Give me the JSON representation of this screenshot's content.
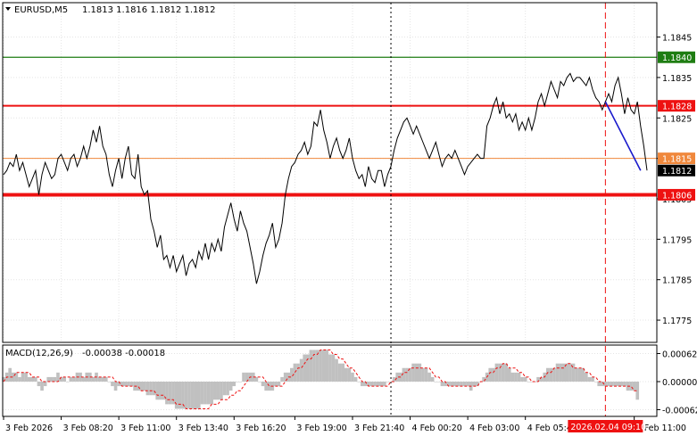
{
  "header": {
    "symbol": "EURUSD,M5",
    "ohlc": "1.1813 1.1816 1.1812 1.1812"
  },
  "macd_header": {
    "label": "MACD(12,26,9)",
    "values": "-0.00038 -0.00018"
  },
  "colors": {
    "price_line": "#000000",
    "resistance_green": "#1e7d12",
    "level_red": "#ee1111",
    "level_orange": "#f0883c",
    "trend_blue": "#1a1acc",
    "macd_hist": "#c0c0c0",
    "macd_signal": "#ee1111",
    "current_price_bg": "#000000"
  },
  "chart_data": {
    "type": "line",
    "title": "EURUSD,M5",
    "ylim": [
      1.17695,
      1.18535
    ],
    "y_ticks": [
      "1.1845",
      "1.1835",
      "1.1825",
      "1.1815",
      "1.1805",
      "1.1795",
      "1.1785",
      "1.1775"
    ],
    "x_ticks": [
      "3 Feb 2026",
      "3 Feb 08:20",
      "3 Feb 11:00",
      "3 Feb 13:40",
      "3 Feb 16:20",
      "3 Feb 19:00",
      "3 Feb 21:40",
      "4 Feb 00:20",
      "4 Feb 03:00",
      "4 Feb 05:40",
      "4 Feb 11:00"
    ],
    "cursor_time_label": "2026.02.04 09:10",
    "grid": true,
    "series": [
      {
        "values": [
          1.1811,
          1.1812,
          1.1814,
          1.1813,
          1.1816,
          1.1812,
          1.1814,
          1.1811,
          1.1808,
          1.181,
          1.1812,
          1.1806,
          1.1811,
          1.1814,
          1.1812,
          1.181,
          1.1811,
          1.1815,
          1.1816,
          1.1814,
          1.1812,
          1.1815,
          1.1816,
          1.1813,
          1.1815,
          1.1818,
          1.1815,
          1.1818,
          1.1822,
          1.1819,
          1.1823,
          1.1818,
          1.1816,
          1.1811,
          1.1808,
          1.1812,
          1.1815,
          1.181,
          1.1815,
          1.1818,
          1.1811,
          1.181,
          1.1816,
          1.1808,
          1.1806,
          1.1807,
          1.18,
          1.1797,
          1.1793,
          1.1796,
          1.179,
          1.1791,
          1.1788,
          1.1791,
          1.1787,
          1.1789,
          1.1791,
          1.1786,
          1.1789,
          1.179,
          1.1788,
          1.1792,
          1.179,
          1.1794,
          1.179,
          1.1794,
          1.1792,
          1.1795,
          1.1792,
          1.1798,
          1.1801,
          1.1804,
          1.18,
          1.1797,
          1.1802,
          1.1799,
          1.1797,
          1.1793,
          1.1789,
          1.1784,
          1.1787,
          1.1791,
          1.1794,
          1.1796,
          1.1799,
          1.1793,
          1.1795,
          1.1799,
          1.1806,
          1.181,
          1.1813,
          1.1814,
          1.1816,
          1.1817,
          1.1819,
          1.1816,
          1.1818,
          1.1824,
          1.1823,
          1.1827,
          1.1822,
          1.1819,
          1.1815,
          1.1818,
          1.182,
          1.1817,
          1.1815,
          1.1817,
          1.182,
          1.1815,
          1.1812,
          1.181,
          1.1811,
          1.1808,
          1.1813,
          1.181,
          1.1809,
          1.1812,
          1.1812,
          1.1808,
          1.1811,
          1.1813,
          1.1817,
          1.182,
          1.1822,
          1.1824,
          1.1825,
          1.1823,
          1.1821,
          1.1823,
          1.1821,
          1.1819,
          1.1817,
          1.1815,
          1.1817,
          1.1819,
          1.1816,
          1.1813,
          1.1815,
          1.1816,
          1.1815,
          1.1817,
          1.1815,
          1.1813,
          1.1811,
          1.1813,
          1.1814,
          1.1815,
          1.1816,
          1.1815,
          1.1815,
          1.1823,
          1.1825,
          1.1828,
          1.183,
          1.1826,
          1.1829,
          1.1825,
          1.1826,
          1.1824,
          1.1826,
          1.1822,
          1.1824,
          1.1822,
          1.1825,
          1.1822,
          1.1825,
          1.1829,
          1.1831,
          1.1828,
          1.1831,
          1.1834,
          1.1832,
          1.183,
          1.1834,
          1.1833,
          1.1835,
          1.1836,
          1.1834,
          1.1835,
          1.1835,
          1.1834,
          1.1833,
          1.1835,
          1.1832,
          1.183,
          1.1829,
          1.1827,
          1.1829,
          1.1831,
          1.1829,
          1.1833,
          1.1835,
          1.1831,
          1.1826,
          1.183,
          1.1827,
          1.1826,
          1.1829,
          1.1823,
          1.1818,
          1.1812
        ]
      }
    ],
    "levels": [
      {
        "price": 1.184,
        "label": "1.1840",
        "color": "green"
      },
      {
        "price": 1.1828,
        "label": "1.1828",
        "color": "red"
      },
      {
        "price": 1.1815,
        "label": "1.1815",
        "color": "orange"
      },
      {
        "price": 1.1812,
        "label": "1.1812",
        "color": "black"
      },
      {
        "price": 1.1806,
        "label": "1.1806",
        "color": "red-thick"
      }
    ],
    "trend_line": {
      "from_index": 188,
      "from_price": 1.1829,
      "to_index": 199,
      "to_price": 1.1812
    },
    "macd": {
      "y_ticks": [
        "0.00062",
        "0.00000",
        "-0.00062"
      ],
      "ylim": [
        -0.00065,
        0.00065
      ],
      "histogram": [
        0.0001,
        0.0002,
        0.0003,
        0.0002,
        0.0002,
        0.0001,
        0.0002,
        0.0002,
        0.0001,
        0.0001,
        0.0001,
        -0.0001,
        -0.0002,
        -0.0001,
        0.0001,
        0.0001,
        0.0001,
        0.0002,
        0.0001,
        0.0001,
        0.0,
        0.0001,
        0.0001,
        0.0002,
        0.0002,
        0.0001,
        0.0002,
        0.0002,
        0.0001,
        0.0002,
        0.0001,
        0.0001,
        0.0001,
        0.0,
        -0.0001,
        -0.0002,
        -0.0001,
        -0.0001,
        -0.0001,
        -0.0001,
        -0.0001,
        -0.0002,
        -0.0002,
        -0.0002,
        -0.0002,
        -0.0003,
        -0.0003,
        -0.0003,
        -0.0004,
        -0.0004,
        -0.0004,
        -0.0005,
        -0.0005,
        -0.0005,
        -0.0006,
        -0.0006,
        -0.0006,
        -0.0006,
        -0.0006,
        -0.0006,
        -0.0006,
        -0.0006,
        -0.0005,
        -0.0005,
        -0.0005,
        -0.0005,
        -0.0004,
        -0.0004,
        -0.0004,
        -0.0003,
        -0.0003,
        -0.0002,
        -0.0001,
        0.0,
        0.0,
        0.0002,
        0.0002,
        0.0002,
        0.0002,
        0.0001,
        0.0,
        -0.0001,
        -0.0002,
        -0.0002,
        -0.0002,
        -0.0001,
        -0.0001,
        0.0001,
        0.0002,
        0.0002,
        0.0003,
        0.0004,
        0.0004,
        0.0005,
        0.0006,
        0.0006,
        0.0007,
        0.0007,
        0.0007,
        0.0007,
        0.0007,
        0.0007,
        0.0006,
        0.0006,
        0.0005,
        0.0004,
        0.0004,
        0.0003,
        0.0003,
        0.0002,
        0.0001,
        0.0,
        -0.0001,
        -0.0001,
        -0.0001,
        -0.0001,
        -0.0001,
        -0.0001,
        -0.0001,
        -0.0001,
        0.0,
        0.0,
        0.0001,
        0.0002,
        0.0002,
        0.0003,
        0.0003,
        0.0003,
        0.0004,
        0.0004,
        0.0004,
        0.0003,
        0.0003,
        0.0002,
        0.0001,
        0.0,
        0.0,
        -0.0001,
        -0.0001,
        -0.0001,
        -0.0001,
        -0.0001,
        -0.0001,
        -0.0001,
        -0.0001,
        -0.0001,
        -0.0002,
        -0.0001,
        -0.0001,
        0.0,
        0.0001,
        0.0002,
        0.0003,
        0.0003,
        0.0004,
        0.0004,
        0.0004,
        0.0004,
        0.0003,
        0.0002,
        0.0002,
        0.0002,
        0.0001,
        0.0001,
        0.0,
        0.0,
        0.0,
        0.0001,
        0.0001,
        0.0002,
        0.0003,
        0.0003,
        0.0003,
        0.0004,
        0.0004,
        0.0004,
        0.0004,
        0.0004,
        0.0004,
        0.0003,
        0.0003,
        0.0003,
        0.0002,
        0.0001,
        0.0001,
        0.0,
        -0.0001,
        -0.0001,
        -0.0001,
        -0.0001,
        -0.0001,
        -0.0001,
        -0.0001,
        -0.0001,
        -0.0001,
        -0.0002,
        -0.0002,
        -0.0002,
        -0.0004
      ],
      "signal": [
        0.0,
        0.0001,
        0.0001,
        0.0001,
        0.0002,
        0.0002,
        0.0002,
        0.0002,
        0.0002,
        0.0001,
        0.0001,
        0.0001,
        0.0,
        0.0,
        0.0,
        0.0,
        0.0,
        0.0,
        0.0001,
        0.0001,
        0.0001,
        0.0001,
        0.0001,
        0.0001,
        0.0001,
        0.0001,
        0.0001,
        0.0001,
        0.0001,
        0.0001,
        0.0001,
        0.0001,
        0.0001,
        0.0001,
        0.0001,
        0.0,
        0.0,
        -0.0001,
        -0.0001,
        -0.0001,
        -0.0001,
        -0.0001,
        -0.0001,
        -0.0002,
        -0.0002,
        -0.0002,
        -0.0002,
        -0.0002,
        -0.0003,
        -0.0003,
        -0.0003,
        -0.0004,
        -0.0004,
        -0.0004,
        -0.0005,
        -0.0005,
        -0.0005,
        -0.0006,
        -0.0006,
        -0.0006,
        -0.0006,
        -0.0006,
        -0.0006,
        -0.0006,
        -0.0006,
        -0.0005,
        -0.0005,
        -0.0005,
        -0.0004,
        -0.0004,
        -0.0004,
        -0.0003,
        -0.0003,
        -0.0002,
        -0.0002,
        -0.0001,
        0.0,
        0.0001,
        0.0001,
        0.0001,
        0.0001,
        0.0001,
        0.0,
        -0.0001,
        -0.0001,
        -0.0001,
        -0.0001,
        -0.0001,
        0.0,
        0.0001,
        0.0001,
        0.0002,
        0.0003,
        0.0003,
        0.0004,
        0.0005,
        0.0005,
        0.0006,
        0.0006,
        0.0007,
        0.0007,
        0.0007,
        0.0007,
        0.0006,
        0.0006,
        0.0005,
        0.0005,
        0.0004,
        0.0003,
        0.0003,
        0.0002,
        0.0001,
        0.0,
        0.0,
        -0.0001,
        -0.0001,
        -0.0001,
        -0.0001,
        -0.0001,
        -0.0001,
        -0.0001,
        0.0,
        0.0,
        0.0001,
        0.0001,
        0.0002,
        0.0002,
        0.0003,
        0.0003,
        0.0003,
        0.0003,
        0.0003,
        0.0003,
        0.0003,
        0.0002,
        0.0001,
        0.0001,
        0.0,
        0.0,
        -0.0001,
        -0.0001,
        -0.0001,
        -0.0001,
        -0.0001,
        -0.0001,
        -0.0001,
        -0.0001,
        -0.0001,
        -0.0001,
        0.0,
        0.0,
        0.0001,
        0.0002,
        0.0002,
        0.0003,
        0.0003,
        0.0004,
        0.0004,
        0.0003,
        0.0003,
        0.0003,
        0.0002,
        0.0002,
        0.0001,
        0.0001,
        0.0,
        0.0,
        0.0,
        0.0001,
        0.0001,
        0.0002,
        0.0002,
        0.0003,
        0.0003,
        0.0003,
        0.0003,
        0.0004,
        0.0004,
        0.0003,
        0.0003,
        0.0003,
        0.0003,
        0.0002,
        0.0002,
        0.0001,
        0.0001,
        0.0,
        0.0,
        -0.0001,
        -0.0001,
        -0.0001,
        -0.0001,
        -0.0001,
        -0.0001,
        -0.0001,
        -0.0001,
        -0.0001,
        -0.0002,
        -0.0002
      ]
    }
  }
}
